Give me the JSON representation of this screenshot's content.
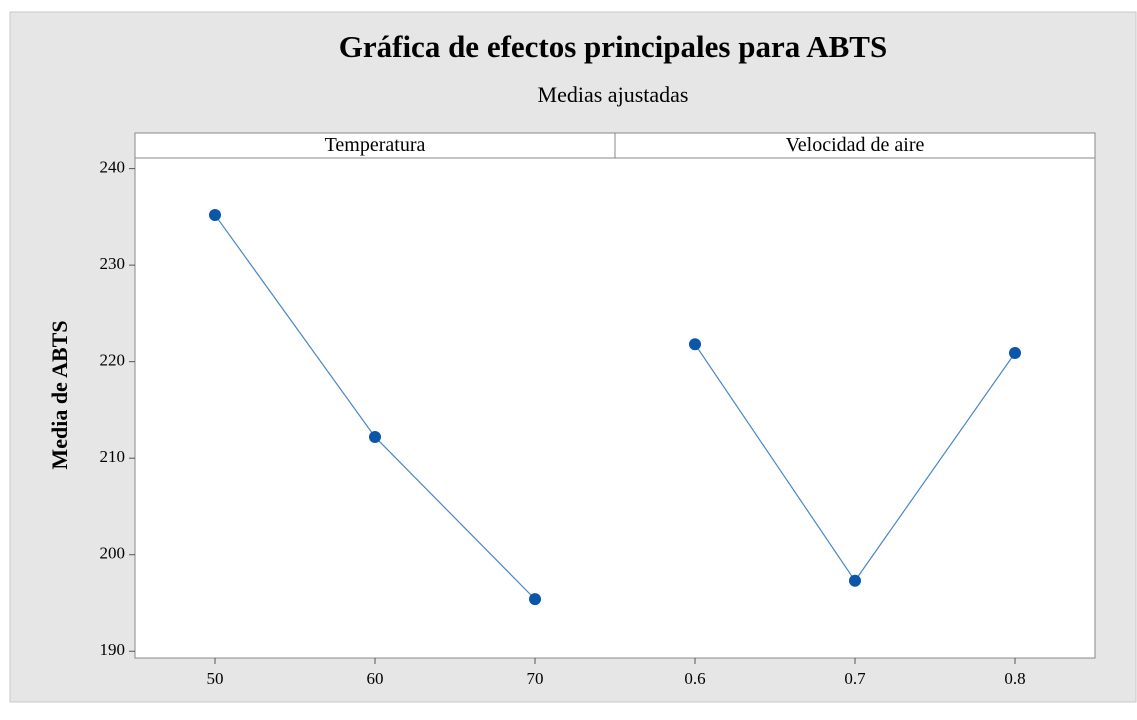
{
  "chart_data": {
    "type": "line",
    "title": "Gráfica de efectos principales para ABTS",
    "subtitle": "Medias ajustadas",
    "ylabel": "Media de ABTS",
    "ylim": [
      189.3,
      241.1
    ],
    "yticks": [
      190,
      200,
      210,
      220,
      230,
      240
    ],
    "color": "#4a86c8",
    "marker_color": "#0a56a8",
    "panels": [
      {
        "name": "Temperatura",
        "x": [
          50,
          60,
          70
        ],
        "values": [
          235.2,
          212.2,
          195.4
        ],
        "xlim": [
          45,
          75
        ],
        "xticks": [
          50,
          60,
          70
        ]
      },
      {
        "name": "Velocidad de aire",
        "x": [
          0.6,
          0.7,
          0.8
        ],
        "values": [
          221.8,
          197.3,
          220.9
        ],
        "xlim": [
          0.55,
          0.85
        ],
        "xticks": [
          0.6,
          0.7,
          0.8
        ]
      }
    ]
  }
}
